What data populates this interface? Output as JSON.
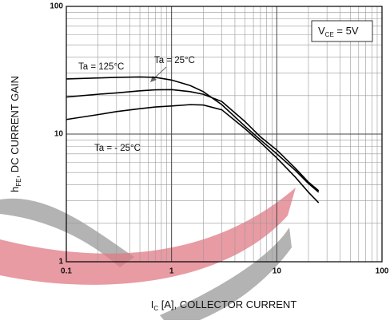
{
  "chart_data": {
    "type": "line",
    "xlog": true,
    "ylog": true,
    "grid": true,
    "xlim": [
      0.1,
      100
    ],
    "ylim": [
      1,
      100
    ],
    "xticks": [
      0.1,
      1,
      10,
      100
    ],
    "yticks": [
      1,
      10,
      100
    ],
    "xminor_ticks": [
      0.2,
      0.3,
      0.4,
      0.5,
      0.6,
      0.7,
      0.8,
      0.9,
      2,
      3,
      4,
      5,
      6,
      7,
      8,
      9,
      20,
      30,
      40,
      50,
      60,
      70,
      80,
      90
    ],
    "yminor_ticks": [
      2,
      3,
      4,
      5,
      6,
      7,
      8,
      9,
      20,
      30,
      40,
      50,
      60,
      70,
      80,
      90
    ],
    "x_label": {
      "main": "I",
      "sub": "C",
      "rest": " [A], COLLECTOR CURRENT"
    },
    "y_label": {
      "main": "h",
      "sub": "FE",
      "rest": ", DC CURRENT GAIN"
    },
    "condition": {
      "main": "V",
      "sub": "CE",
      "rest": " = 5V"
    },
    "x": [
      0.1,
      0.2,
      0.3,
      0.5,
      0.7,
      1,
      1.5,
      2,
      3,
      5,
      7,
      10,
      15,
      20,
      25
    ],
    "series": [
      {
        "name": "Ta = 125°C",
        "color": "#000000",
        "values": [
          27,
          27.5,
          27.8,
          28,
          27.8,
          26.5,
          24,
          21.5,
          17,
          11.5,
          9,
          7,
          5.2,
          4.1,
          3.5
        ]
      },
      {
        "name": "Ta = 25°C",
        "color": "#000000",
        "values": [
          19.5,
          20.5,
          21,
          21.8,
          22.2,
          22.3,
          21.5,
          20.5,
          18,
          12.5,
          9.5,
          7.5,
          5.4,
          4.2,
          3.6
        ]
      },
      {
        "name": "Ta = - 25°C",
        "color": "#000000",
        "values": [
          13,
          14.2,
          15,
          15.8,
          16.3,
          16.6,
          17,
          16.9,
          15.5,
          11,
          8.6,
          6.5,
          4.6,
          3.5,
          2.9
        ]
      }
    ]
  }
}
